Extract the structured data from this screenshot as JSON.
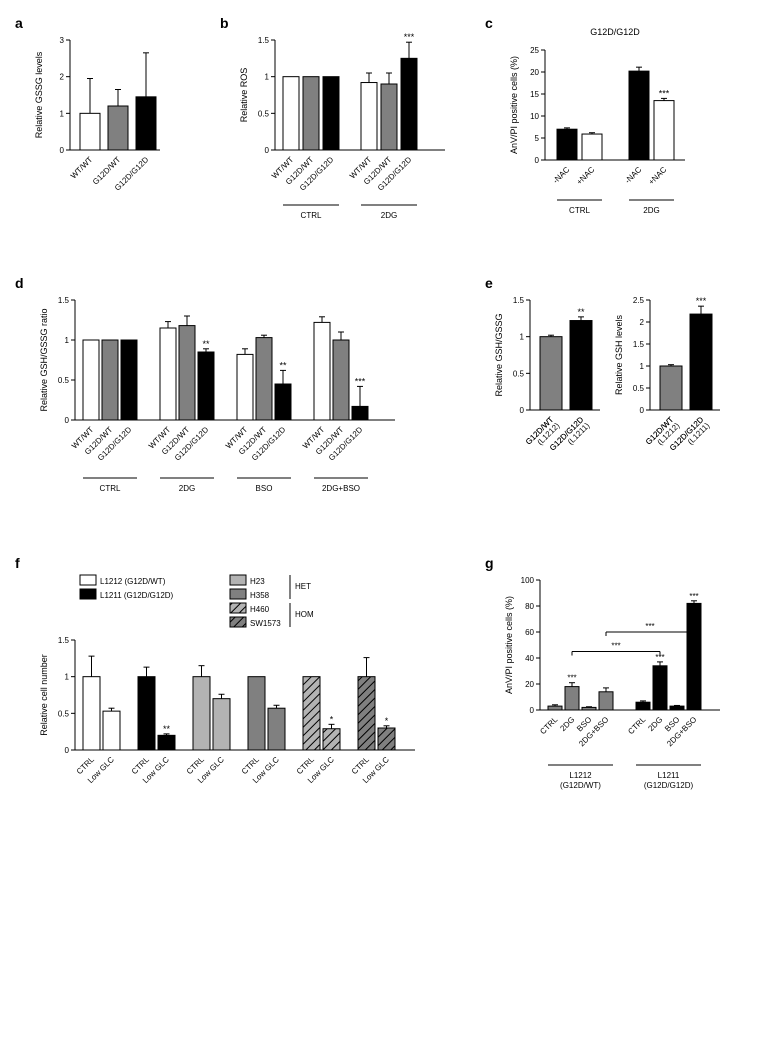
{
  "panel_a": {
    "label": "a",
    "type": "bar",
    "ylabel": "Relative GSSG levels",
    "ylim": [
      0,
      3
    ],
    "yticks": [
      0,
      1,
      2,
      3
    ],
    "categories": [
      "WT/WT",
      "G12D/WT",
      "G12D/G12D"
    ],
    "values": [
      1.0,
      1.2,
      1.45
    ],
    "errors": [
      0.95,
      0.45,
      1.2
    ],
    "bar_colors": [
      "#ffffff",
      "#808080",
      "#000000"
    ],
    "bar_border": "#000000",
    "label_fontsize": 9,
    "tick_fontsize": 8
  },
  "panel_b": {
    "label": "b",
    "type": "bar",
    "ylabel": "Relative ROS",
    "ylim": [
      0,
      1.5
    ],
    "yticks": [
      0,
      0.5,
      1.0,
      1.5
    ],
    "groups": [
      {
        "name": "CTRL",
        "categories": [
          "WT/WT",
          "G12D/WT",
          "G12D/G12D"
        ],
        "values": [
          1.0,
          1.0,
          1.0
        ],
        "errors": [
          0,
          0,
          0
        ]
      },
      {
        "name": "2DG",
        "categories": [
          "WT/WT",
          "G12D/WT",
          "G12D/G12D"
        ],
        "values": [
          0.92,
          0.9,
          1.25
        ],
        "errors": [
          0.13,
          0.15,
          0.22
        ]
      }
    ],
    "bar_colors": [
      "#ffffff",
      "#808080",
      "#000000"
    ],
    "bar_border": "#000000",
    "annotations": [
      {
        "group": 1,
        "bar": 2,
        "text": "***"
      }
    ],
    "label_fontsize": 9,
    "tick_fontsize": 8
  },
  "panel_c": {
    "label": "c",
    "type": "bar",
    "title": "G12D/G12D",
    "ylabel": "AnV/PI positive cells (%)",
    "ylim": [
      0,
      25
    ],
    "yticks": [
      0,
      5,
      10,
      15,
      20,
      25
    ],
    "groups": [
      {
        "name": "CTRL",
        "categories": [
          "-NAC",
          "+NAC"
        ],
        "values": [
          7.0,
          5.9
        ],
        "errors": [
          0.3,
          0.3
        ]
      },
      {
        "name": "2DG",
        "categories": [
          "-NAC",
          "+NAC"
        ],
        "values": [
          20.2,
          13.5
        ],
        "errors": [
          0.9,
          0.5
        ]
      }
    ],
    "bar_colors": [
      "#000000",
      "#ffffff"
    ],
    "bar_border": "#000000",
    "annotations": [
      {
        "group": 1,
        "bar": 1,
        "text": "***"
      }
    ],
    "label_fontsize": 9,
    "tick_fontsize": 8
  },
  "panel_d": {
    "label": "d",
    "type": "bar",
    "ylabel": "Relative GSH/GSSG ratio",
    "ylim": [
      0,
      1.5
    ],
    "yticks": [
      0,
      0.5,
      1.0,
      1.5
    ],
    "groups": [
      {
        "name": "CTRL",
        "categories": [
          "WT/WT",
          "G12D/WT",
          "G12D/G12D"
        ],
        "values": [
          1.0,
          1.0,
          1.0
        ],
        "errors": [
          0,
          0,
          0
        ]
      },
      {
        "name": "2DG",
        "categories": [
          "WT/WT",
          "G12D/WT",
          "G12D/G12D"
        ],
        "values": [
          1.15,
          1.18,
          0.85
        ],
        "errors": [
          0.08,
          0.12,
          0.04
        ],
        "ann": [
          "",
          "",
          "**"
        ]
      },
      {
        "name": "BSO",
        "categories": [
          "WT/WT",
          "G12D/WT",
          "G12D/G12D"
        ],
        "values": [
          0.82,
          1.03,
          0.45
        ],
        "errors": [
          0.07,
          0.03,
          0.17
        ],
        "ann": [
          "",
          "",
          "**"
        ]
      },
      {
        "name": "2DG+BSO",
        "categories": [
          "WT/WT",
          "G12D/WT",
          "G12D/G12D"
        ],
        "values": [
          1.22,
          1.0,
          0.17
        ],
        "errors": [
          0.07,
          0.1,
          0.25
        ],
        "ann": [
          "",
          "",
          "***"
        ]
      }
    ],
    "bar_colors": [
      "#ffffff",
      "#808080",
      "#000000"
    ],
    "bar_border": "#000000",
    "label_fontsize": 9,
    "tick_fontsize": 8
  },
  "panel_e": {
    "label": "e",
    "charts": [
      {
        "type": "bar",
        "ylabel": "Relative GSH/GSSG",
        "ylim": [
          0,
          1.5
        ],
        "yticks": [
          0,
          0.5,
          1.0,
          1.5
        ],
        "categories": [
          "G12D/WT\n(L1212)",
          "G12D/G12D\n(L1211)"
        ],
        "values": [
          1.0,
          1.22
        ],
        "errors": [
          0.02,
          0.05
        ],
        "bar_colors": [
          "#808080",
          "#000000"
        ],
        "bar_border": "#000000",
        "annotations": [
          {
            "bar": 1,
            "text": "**"
          }
        ]
      },
      {
        "type": "bar",
        "ylabel": "Relative GSH levels",
        "ylim": [
          0,
          2.5
        ],
        "yticks": [
          0,
          0.5,
          1.0,
          1.5,
          2.0,
          2.5
        ],
        "categories": [
          "G12D/WT\n(L1212)",
          "G12D/G12D\n(L1211)"
        ],
        "values": [
          1.0,
          2.18
        ],
        "errors": [
          0.03,
          0.18
        ],
        "bar_colors": [
          "#808080",
          "#000000"
        ],
        "bar_border": "#000000",
        "annotations": [
          {
            "bar": 1,
            "text": "***"
          }
        ]
      }
    ],
    "label_fontsize": 9,
    "tick_fontsize": 8
  },
  "panel_f": {
    "label": "f",
    "type": "bar",
    "ylabel": "Relative cell number",
    "ylim": [
      0,
      1.5
    ],
    "yticks": [
      0,
      0.5,
      1.0,
      1.5
    ],
    "legend": [
      {
        "name": "L1212 (G12D/WT)",
        "fill": "#ffffff",
        "hatch": false
      },
      {
        "name": "L1211 (G12D/G12D)",
        "fill": "#000000",
        "hatch": false
      },
      {
        "name": "H23",
        "fill": "#b3b3b3",
        "hatch": false
      },
      {
        "name": "H358",
        "fill": "#808080",
        "hatch": false
      },
      {
        "name": "H460",
        "fill": "#b3b3b3",
        "hatch": true
      },
      {
        "name": "SW1573",
        "fill": "#808080",
        "hatch": true
      }
    ],
    "legend_groups": [
      {
        "label": "HET",
        "items": [
          "H23",
          "H358"
        ]
      },
      {
        "label": "HOM",
        "items": [
          "H460",
          "SW1573"
        ]
      }
    ],
    "groups": [
      {
        "cell": "L1212",
        "fill": "#ffffff",
        "hatch": false,
        "values": [
          1.0,
          0.53
        ],
        "errors": [
          0.28,
          0.04
        ],
        "ann": [
          "",
          ""
        ]
      },
      {
        "cell": "L1211",
        "fill": "#000000",
        "hatch": false,
        "values": [
          1.0,
          0.2
        ],
        "errors": [
          0.13,
          0.02
        ],
        "ann": [
          "",
          "**"
        ]
      },
      {
        "cell": "H23",
        "fill": "#b3b3b3",
        "hatch": false,
        "values": [
          1.0,
          0.7
        ],
        "errors": [
          0.15,
          0.06
        ],
        "ann": [
          "",
          ""
        ]
      },
      {
        "cell": "H358",
        "fill": "#808080",
        "hatch": false,
        "values": [
          1.0,
          0.57
        ],
        "errors": [
          0.0,
          0.04
        ],
        "ann": [
          "",
          ""
        ]
      },
      {
        "cell": "H460",
        "fill": "#b3b3b3",
        "hatch": true,
        "values": [
          1.0,
          0.29
        ],
        "errors": [
          0.0,
          0.06
        ],
        "ann": [
          "",
          "*"
        ]
      },
      {
        "cell": "SW1573",
        "fill": "#808080",
        "hatch": true,
        "values": [
          1.0,
          0.3
        ],
        "errors": [
          0.26,
          0.03
        ],
        "ann": [
          "",
          "*"
        ]
      }
    ],
    "conditions": [
      "CTRL",
      "Low GLC"
    ],
    "label_fontsize": 9,
    "tick_fontsize": 8
  },
  "panel_g": {
    "label": "g",
    "type": "bar",
    "ylabel": "AnV/PI positive cells (%)",
    "ylim": [
      0,
      100
    ],
    "yticks": [
      0,
      20,
      40,
      60,
      80,
      100
    ],
    "cell_lines": [
      {
        "name": "L1212\n(G12D/WT)",
        "fill": "#808080",
        "values": [
          3,
          18,
          2,
          14
        ],
        "errors": [
          1,
          3,
          0.5,
          3
        ],
        "ann": [
          "",
          "***",
          "",
          ""
        ]
      },
      {
        "name": "L1211\n(G12D/G12D)",
        "fill": "#000000",
        "values": [
          6,
          34,
          3,
          82
        ],
        "errors": [
          1,
          3,
          0.5,
          2
        ],
        "ann": [
          "",
          "***",
          "",
          "***"
        ]
      }
    ],
    "conditions": [
      "CTRL",
      "2DG",
      "BSO",
      "2DG+BSO"
    ],
    "brackets": [
      {
        "from": [
          0,
          3
        ],
        "to": [
          1,
          3
        ],
        "text": "***",
        "y": 60
      },
      {
        "from": [
          0,
          1
        ],
        "to": [
          1,
          1
        ],
        "text": "***",
        "y": 45
      }
    ],
    "label_fontsize": 9,
    "tick_fontsize": 8
  },
  "colors": {
    "axis": "#000000",
    "text": "#000000"
  }
}
